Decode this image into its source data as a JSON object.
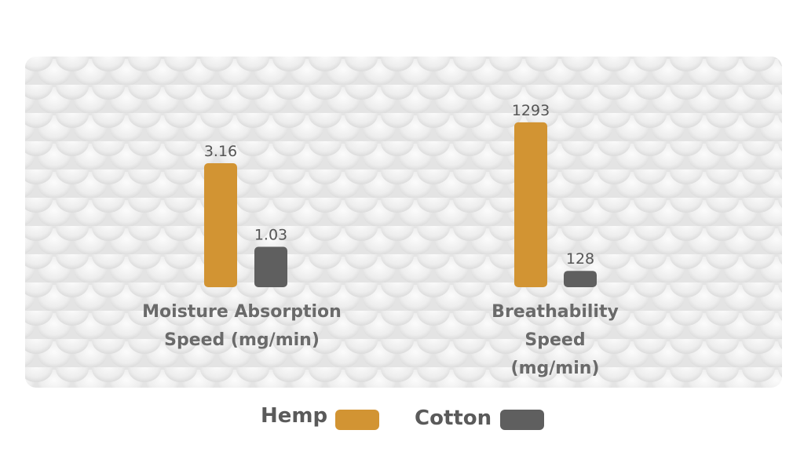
{
  "chart_data": [
    {
      "type": "bar",
      "title": "Moisture Absorption Speed (mg/min)",
      "series": [
        {
          "name": "Hemp",
          "color": "#d29433",
          "values": [
            3.16
          ]
        },
        {
          "name": "Cotton",
          "color": "#5f5f5f",
          "values": [
            1.03
          ]
        }
      ],
      "ylim": [
        0,
        4
      ]
    },
    {
      "type": "bar",
      "title": "Breathability Speed (mg/min)",
      "series": [
        {
          "color": "#d29433",
          "values": [
            1293
          ]
        },
        {
          "color": "#5f5f5f",
          "values": [
            128
          ]
        }
      ],
      "ylim": [
        0,
        1600
      ]
    }
  ]
}
